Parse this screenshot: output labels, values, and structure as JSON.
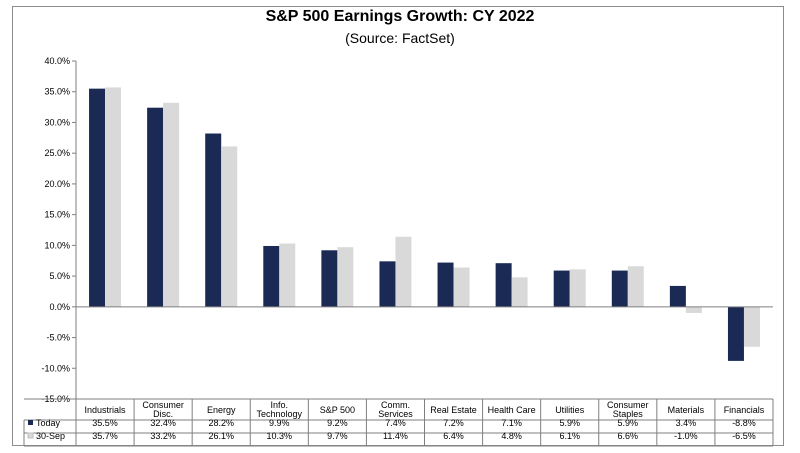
{
  "chart_data": {
    "type": "bar",
    "title": "S&P 500 Earnings Growth: CY 2022",
    "subtitle": "(Source: FactSet)",
    "categories": [
      [
        "Industrials"
      ],
      [
        "Consumer",
        "Disc."
      ],
      [
        "Energy"
      ],
      [
        "Info.",
        "Technology"
      ],
      [
        "S&P 500"
      ],
      [
        "Comm.",
        "Services"
      ],
      [
        "Real Estate"
      ],
      [
        "Health Care"
      ],
      [
        "Utilities"
      ],
      [
        "Consumer",
        "Staples"
      ],
      [
        "Materials"
      ],
      [
        "Financials"
      ]
    ],
    "series": [
      {
        "name": "Today",
        "color": "#1b2a55",
        "values": [
          35.5,
          32.4,
          28.2,
          9.9,
          9.2,
          7.4,
          7.2,
          7.1,
          5.9,
          5.9,
          3.4,
          -8.8
        ],
        "labels": [
          "35.5%",
          "32.4%",
          "28.2%",
          "9.9%",
          "9.2%",
          "7.4%",
          "7.2%",
          "7.1%",
          "5.9%",
          "5.9%",
          "3.4%",
          "-8.8%"
        ]
      },
      {
        "name": "30-Sep",
        "color": "#d9d9d9",
        "values": [
          35.7,
          33.2,
          26.1,
          10.3,
          9.7,
          11.4,
          6.4,
          4.8,
          6.1,
          6.6,
          -1.0,
          -6.5
        ],
        "labels": [
          "35.7%",
          "33.2%",
          "26.1%",
          "10.3%",
          "9.7%",
          "11.4%",
          "6.4%",
          "4.8%",
          "6.1%",
          "6.6%",
          "-1.0%",
          "-6.5%"
        ]
      }
    ],
    "ylim": [
      -15,
      40
    ],
    "yticks": [
      40,
      35,
      30,
      25,
      20,
      15,
      10,
      5,
      0,
      -5,
      -10,
      -15
    ],
    "ytick_labels": [
      "40.0%",
      "35.0%",
      "30.0%",
      "25.0%",
      "20.0%",
      "15.0%",
      "10.0%",
      "5.0%",
      "0.0%",
      "-5.0%",
      "-10.0%",
      "-15.0%"
    ],
    "grid": false,
    "legend": "data-table"
  }
}
